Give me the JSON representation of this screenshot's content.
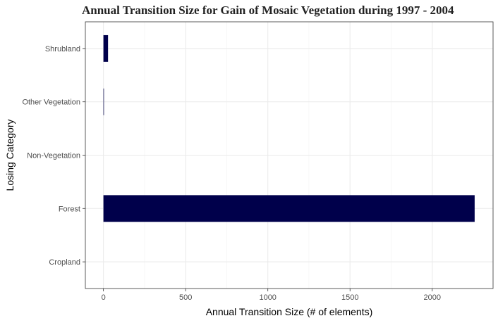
{
  "chart_data": {
    "type": "bar",
    "orientation": "horizontal",
    "title": "Annual Transition Size for Gain of  Mosaic Vegetation during 1997 - 2004",
    "xlabel": "Annual Transition Size (# of elements)",
    "ylabel": "Losing Category",
    "categories": [
      "Cropland",
      "Forest",
      "Non-Vegetation",
      "Other Vegetation",
      "Shrubland"
    ],
    "values": [
      0,
      2258,
      0,
      3,
      28
    ],
    "xlim": [
      -110,
      2370
    ],
    "xticks": [
      0,
      500,
      1000,
      1500,
      2000
    ],
    "xtick_labels": [
      "0",
      "500",
      "1000",
      "1500",
      "2000"
    ],
    "bar_color": "#00004b",
    "grid": true,
    "legend": "none"
  }
}
